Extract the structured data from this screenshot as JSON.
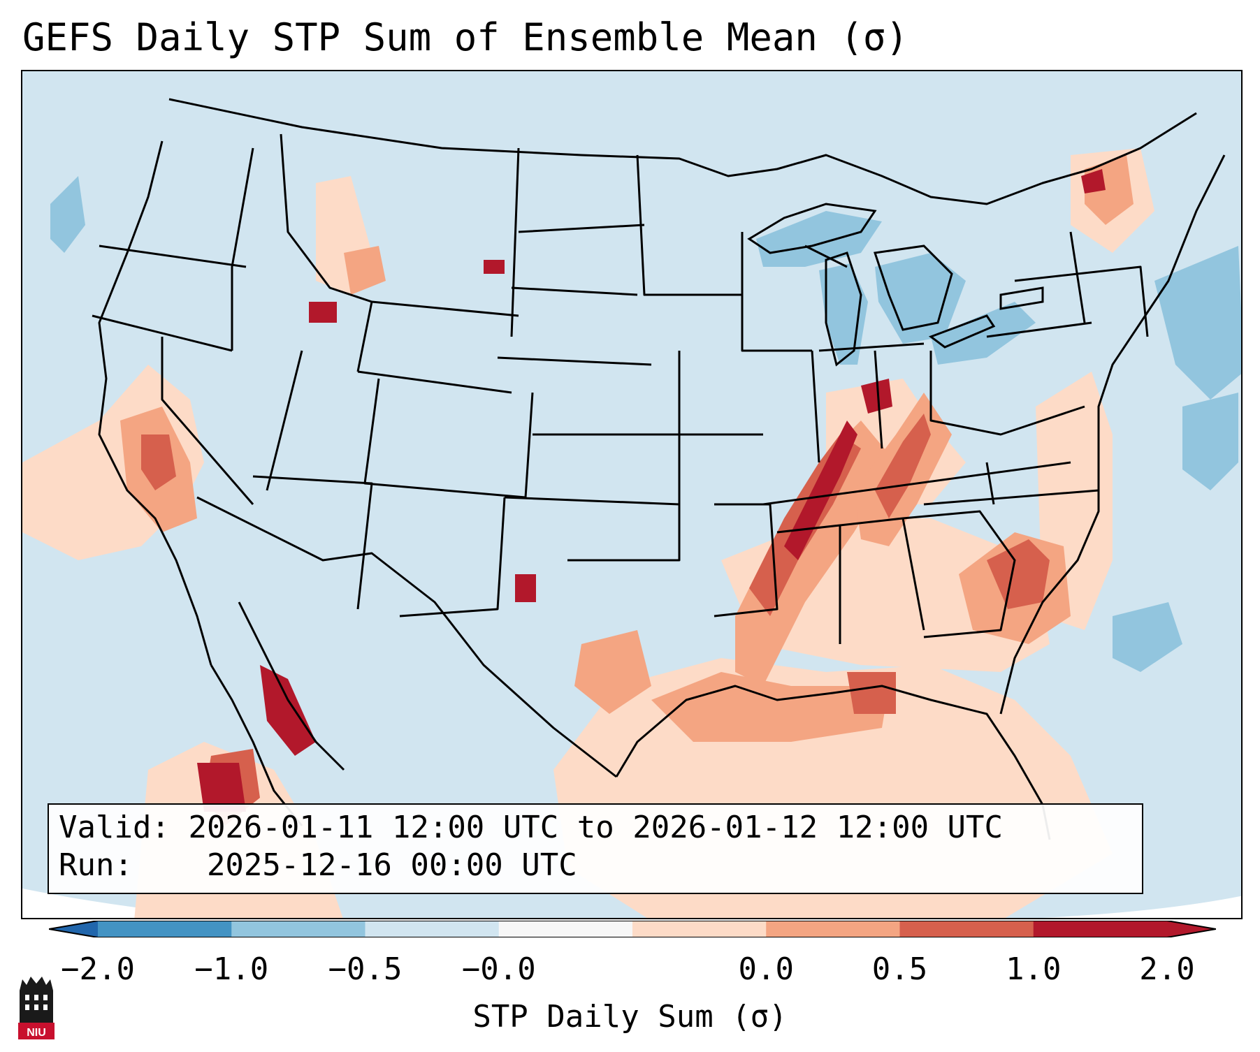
{
  "title": "GEFS Daily STP Sum of Ensemble Mean (σ)",
  "info": {
    "valid_label": "Valid:",
    "valid_value": "2026-01-11 12:00 UTC to 2026-01-12 12:00 UTC",
    "run_label": "Run:",
    "run_value": "2025-12-16 00:00 UTC"
  },
  "colorbar": {
    "label": "STP Daily Sum (σ)",
    "ticks": [
      "−2.0",
      "−1.0",
      "−0.5",
      "−0.0",
      "0.0",
      "0.5",
      "1.0",
      "2.0"
    ],
    "colors": [
      "#4393c3",
      "#92c5de",
      "#d1e5f0",
      "#f7f7f7",
      "#fddbc7",
      "#f4a582",
      "#d6604d",
      "#b2182b"
    ],
    "extend_low_color": "#2166ac",
    "extend_high_color": "#b2182b"
  },
  "logo": {
    "text": "NIU",
    "name": "niu-logo"
  },
  "map": {
    "region": "Continental United States",
    "background_color": "#d1e5f0",
    "highlight_areas": [
      {
        "name": "lower-mississippi-valley",
        "level": "2.0"
      },
      {
        "name": "ohio-valley-band",
        "level": "1.0"
      },
      {
        "name": "carolinas",
        "level": "1.0"
      },
      {
        "name": "gulf-coast",
        "level": "0.5"
      },
      {
        "name": "california-central-valley",
        "level": "0.5"
      },
      {
        "name": "baja-mexico",
        "level": "2.0"
      },
      {
        "name": "great-lakes",
        "level": "-1.0"
      },
      {
        "name": "atlantic-offshore",
        "level": "-1.0"
      }
    ]
  }
}
